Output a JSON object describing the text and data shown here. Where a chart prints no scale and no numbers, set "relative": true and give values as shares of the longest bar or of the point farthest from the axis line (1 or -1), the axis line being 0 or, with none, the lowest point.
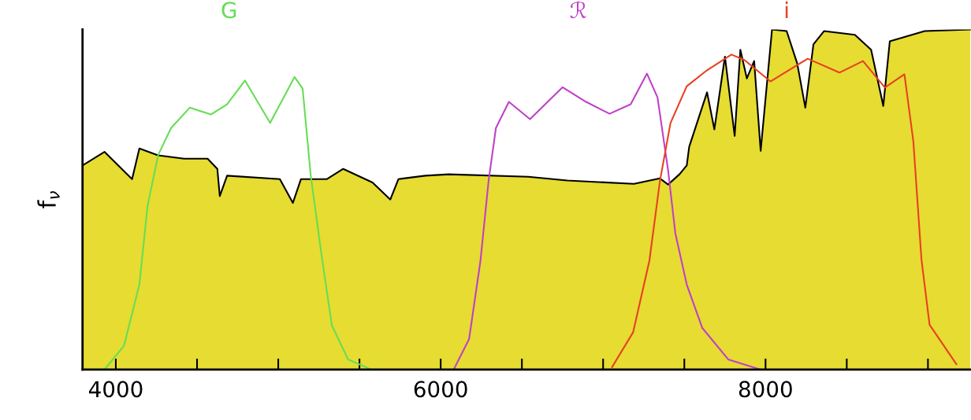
{
  "chart_data": {
    "type": "area",
    "relative": true,
    "ylabel": "f$_{ν}$",
    "xlim": [
      3795,
      9265
    ],
    "xticks": [
      4000,
      {
        "value": 4500,
        "label": null
      },
      {
        "value": 5000,
        "label": null
      },
      {
        "value": 5500,
        "label": null
      },
      6000,
      {
        "value": 6500,
        "label": null
      },
      {
        "value": 7000,
        "label": null
      },
      {
        "value": 7500,
        "label": null
      },
      8000,
      {
        "value": 8500,
        "label": null
      },
      {
        "value": 9000,
        "label": null
      }
    ],
    "series": [
      {
        "type": "area",
        "color": "#e6dc32",
        "x": [
          3795,
          3930,
          4100,
          4145,
          4260,
          4420,
          4565,
          4625,
          4640,
          4685,
          5010,
          5090,
          5140,
          5300,
          5400,
          5580,
          5690,
          5740,
          5905,
          6050,
          6540,
          6780,
          7190,
          7350,
          7400,
          7470,
          7515,
          7530,
          7640,
          7685,
          7750,
          7810,
          7845,
          7885,
          7930,
          7970,
          8040,
          8130,
          8195,
          8245,
          8295,
          8360,
          8550,
          8650,
          8725,
          8765,
          8980,
          9260
        ],
        "values": [
          0.6,
          0.64,
          0.56,
          0.65,
          0.63,
          0.62,
          0.62,
          0.59,
          0.51,
          0.57,
          0.56,
          0.49,
          0.56,
          0.56,
          0.59,
          0.55,
          0.5,
          0.56,
          0.57,
          0.574,
          0.567,
          0.556,
          0.546,
          0.562,
          0.544,
          0.574,
          0.6,
          0.655,
          0.815,
          0.706,
          0.92,
          0.687,
          0.94,
          0.856,
          0.907,
          0.643,
          1.0,
          0.995,
          0.9,
          0.77,
          0.956,
          0.995,
          0.984,
          0.94,
          0.775,
          0.965,
          0.995,
          1.0
        ]
      },
      {
        "type": "line",
        "name": "G",
        "color": "#66dd55",
        "x": [
          3930,
          4050,
          4145,
          4195,
          4260,
          4340,
          4455,
          4585,
          4685,
          4795,
          4950,
          5100,
          5150,
          5200,
          5270,
          5330,
          5430,
          5575
        ],
        "values": [
          0.0,
          0.07,
          0.25,
          0.48,
          0.63,
          0.71,
          0.77,
          0.75,
          0.78,
          0.85,
          0.725,
          0.86,
          0.826,
          0.57,
          0.325,
          0.13,
          0.03,
          0.0
        ]
      },
      {
        "type": "line",
        "name": "ℛ",
        "color": "#c040c8",
        "x": [
          6080,
          6175,
          6245,
          6295,
          6340,
          6420,
          6550,
          6750,
          6895,
          7040,
          7170,
          7270,
          7335,
          7400,
          7445,
          7515,
          7610,
          7770,
          7970
        ],
        "values": [
          0.0,
          0.09,
          0.32,
          0.555,
          0.71,
          0.787,
          0.736,
          0.83,
          0.787,
          0.752,
          0.78,
          0.87,
          0.8,
          0.586,
          0.4,
          0.25,
          0.123,
          0.03,
          0.0
        ]
      },
      {
        "type": "line",
        "name": "i",
        "color": "#e84020",
        "x": [
          7055,
          7185,
          7285,
          7350,
          7415,
          7515,
          7640,
          7790,
          7870,
          8030,
          8260,
          8455,
          8600,
          8735,
          8855,
          8910,
          8960,
          9010,
          9175
        ],
        "values": [
          0.007,
          0.11,
          0.32,
          0.555,
          0.725,
          0.833,
          0.88,
          0.926,
          0.91,
          0.847,
          0.914,
          0.873,
          0.907,
          0.829,
          0.868,
          0.671,
          0.324,
          0.132,
          0.016
        ]
      }
    ]
  }
}
